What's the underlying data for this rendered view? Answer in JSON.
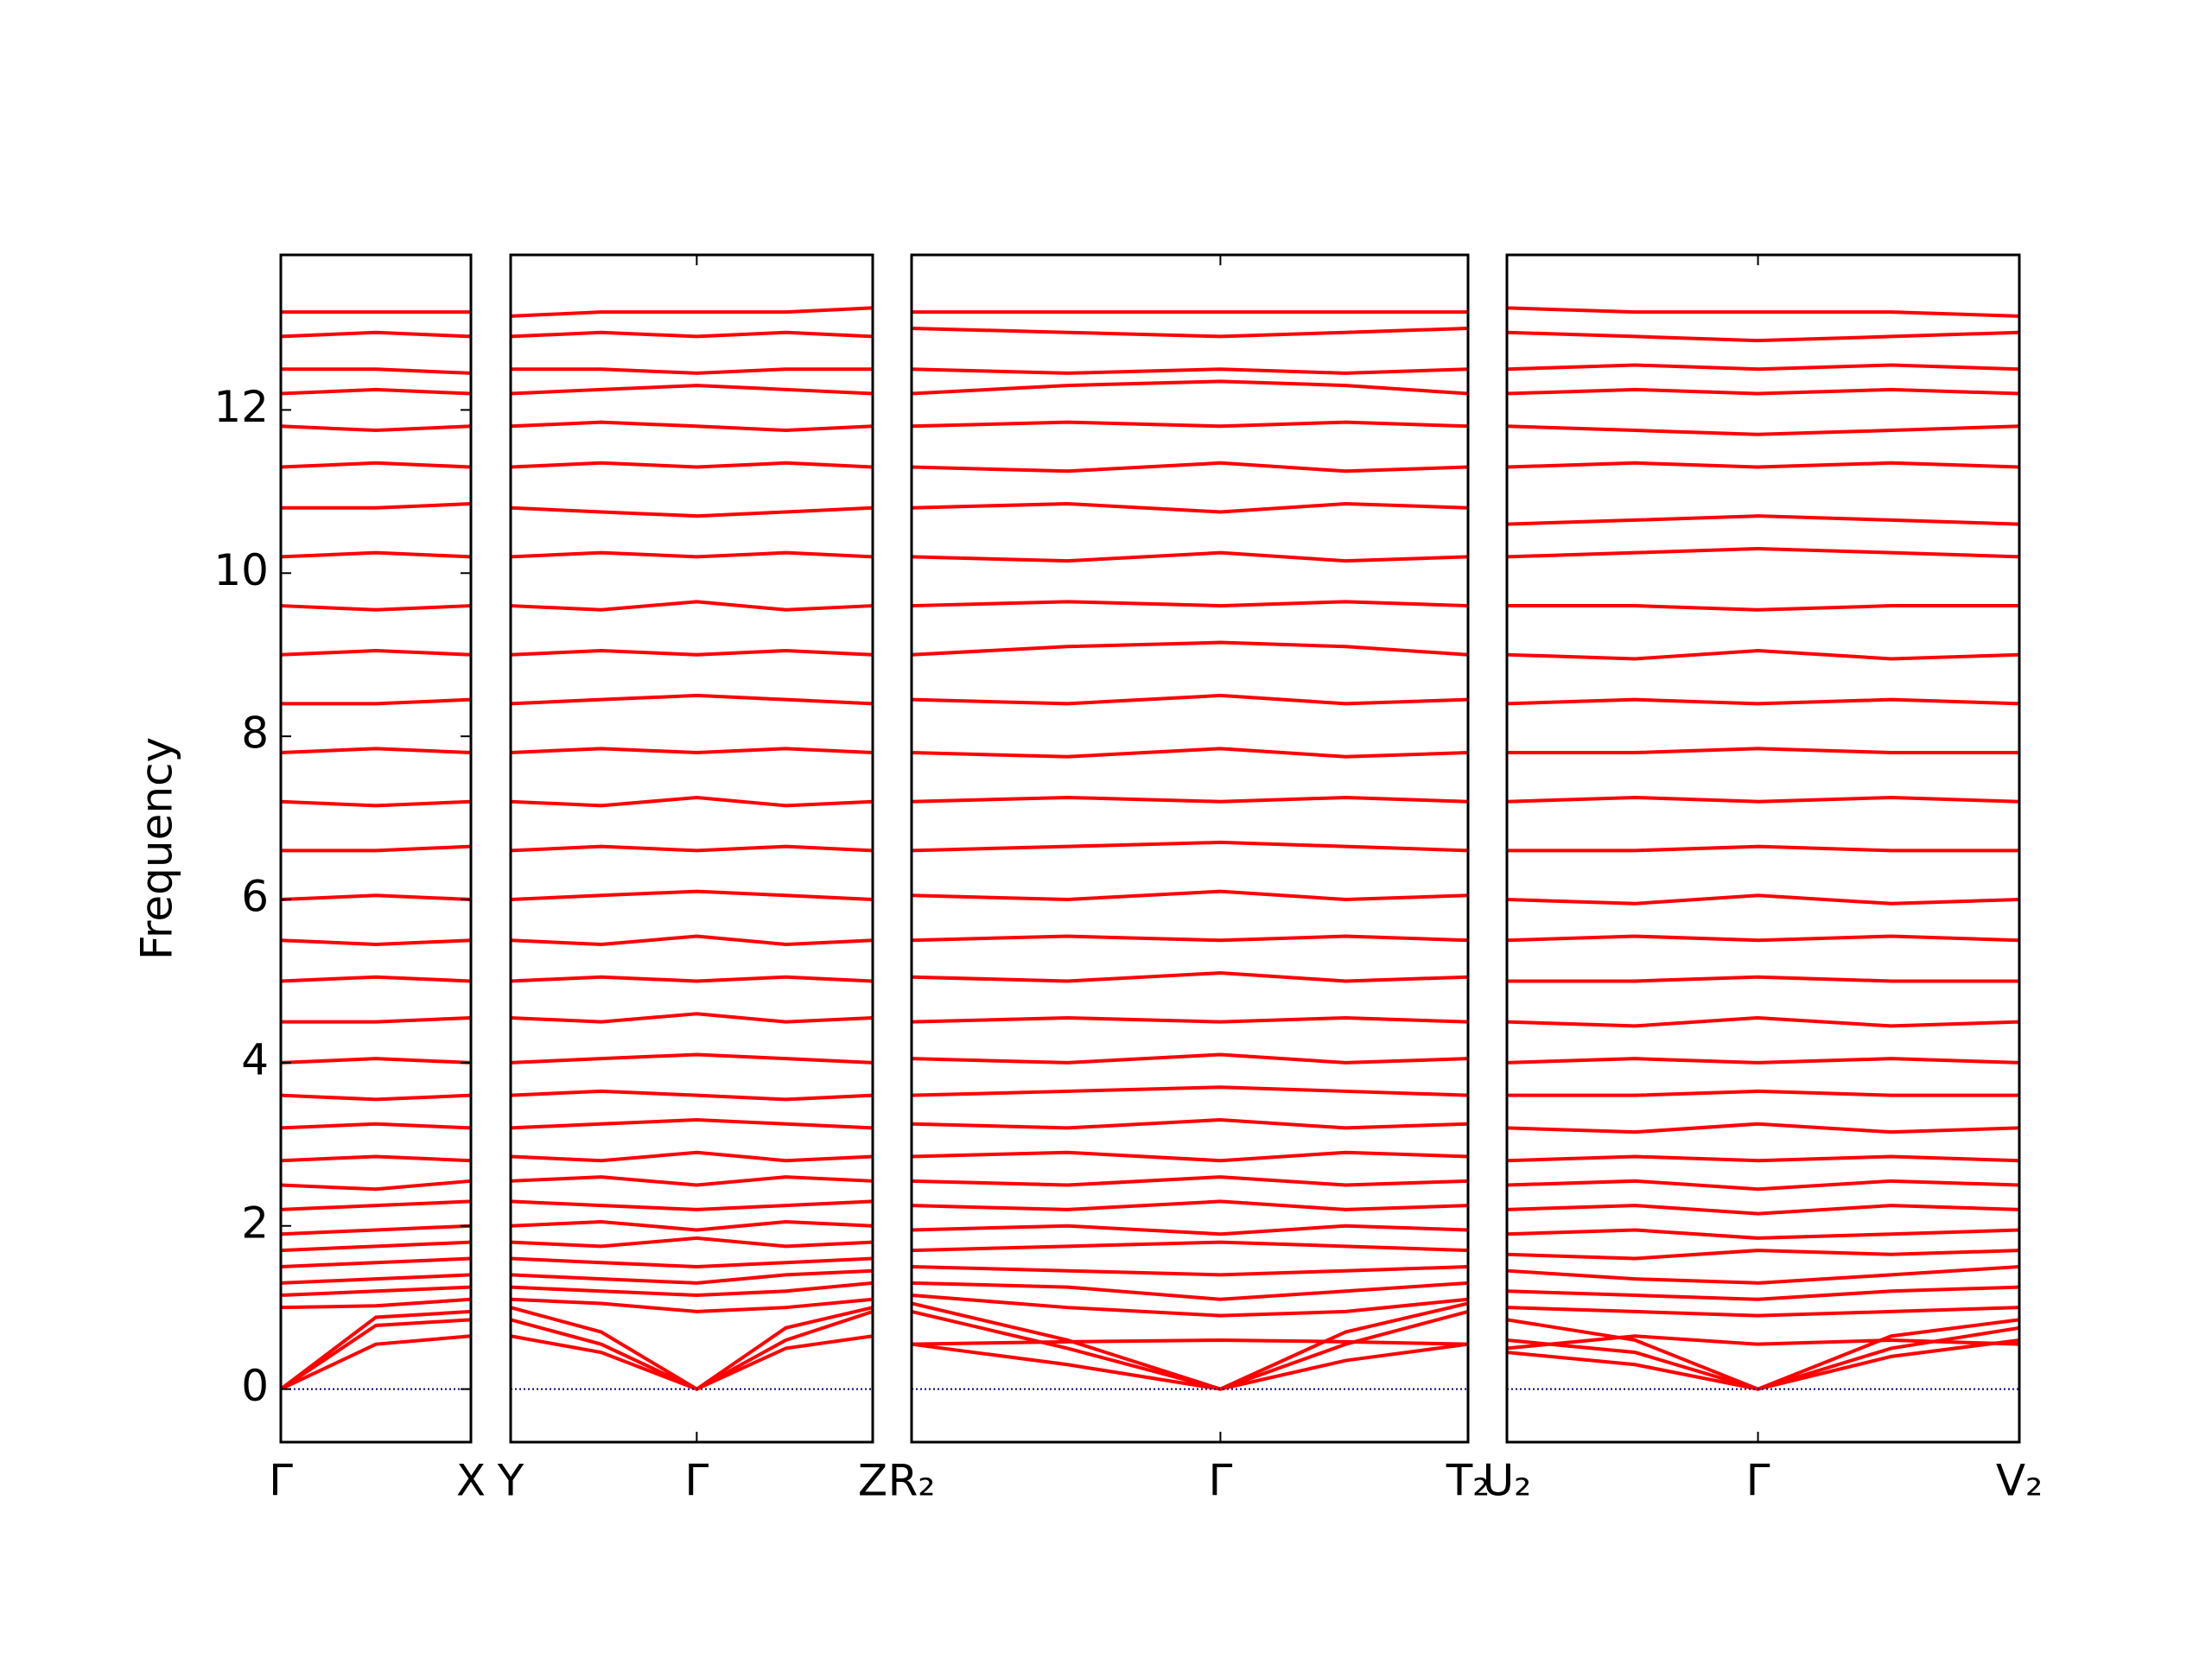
{
  "chart_data": [
    {
      "type": "line",
      "ylabel": "Frequency",
      "color": "#ff0000",
      "hline": 0,
      "hline_color": "#00008b",
      "x": [
        0,
        0.5,
        1
      ],
      "xlim": [
        0,
        1
      ],
      "xticks": [
        {
          "value": 0,
          "label": "Γ"
        },
        {
          "value": 1,
          "label": "X"
        }
      ],
      "ylim": [
        -0.65,
        13.9
      ],
      "yticks": [
        0,
        2,
        4,
        6,
        8,
        10,
        12
      ],
      "series": [
        {
          "values": [
            0,
            0.55,
            0.65
          ]
        },
        {
          "values": [
            0,
            0.78,
            0.85
          ]
        },
        {
          "values": [
            0,
            0.88,
            0.95
          ]
        },
        {
          "values": [
            1.0,
            1.02,
            1.1
          ]
        },
        {
          "values": [
            1.15,
            1.2,
            1.25
          ]
        },
        {
          "values": [
            1.3,
            1.35,
            1.4
          ]
        },
        {
          "values": [
            1.5,
            1.55,
            1.6
          ]
        },
        {
          "values": [
            1.7,
            1.75,
            1.8
          ]
        },
        {
          "values": [
            1.9,
            1.95,
            2.0
          ]
        },
        {
          "values": [
            2.2,
            2.25,
            2.3
          ]
        },
        {
          "values": [
            2.5,
            2.45,
            2.55
          ]
        },
        {
          "values": [
            2.8,
            2.85,
            2.8
          ]
        },
        {
          "values": [
            3.2,
            3.25,
            3.2
          ]
        },
        {
          "values": [
            3.6,
            3.55,
            3.6
          ]
        },
        {
          "values": [
            4.0,
            4.05,
            4.0
          ]
        },
        {
          "values": [
            4.5,
            4.5,
            4.55
          ]
        },
        {
          "values": [
            5.0,
            5.05,
            5.0
          ]
        },
        {
          "values": [
            5.5,
            5.45,
            5.5
          ]
        },
        {
          "values": [
            6.0,
            6.05,
            6.0
          ]
        },
        {
          "values": [
            6.6,
            6.6,
            6.65
          ]
        },
        {
          "values": [
            7.2,
            7.15,
            7.2
          ]
        },
        {
          "values": [
            7.8,
            7.85,
            7.8
          ]
        },
        {
          "values": [
            8.4,
            8.4,
            8.45
          ]
        },
        {
          "values": [
            9.0,
            9.05,
            9.0
          ]
        },
        {
          "values": [
            9.6,
            9.55,
            9.6
          ]
        },
        {
          "values": [
            10.2,
            10.25,
            10.2
          ]
        },
        {
          "values": [
            10.8,
            10.8,
            10.85
          ]
        },
        {
          "values": [
            11.3,
            11.35,
            11.3
          ]
        },
        {
          "values": [
            11.8,
            11.75,
            11.8
          ]
        },
        {
          "values": [
            12.2,
            12.25,
            12.2
          ]
        },
        {
          "values": [
            12.5,
            12.5,
            12.45
          ]
        },
        {
          "values": [
            12.9,
            12.95,
            12.9
          ]
        },
        {
          "values": [
            13.2,
            13.2,
            13.2
          ]
        }
      ]
    },
    {
      "type": "line",
      "color": "#ff0000",
      "hline": 0,
      "hline_color": "#00008b",
      "x": [
        0,
        0.25,
        0.514,
        0.76,
        1
      ],
      "xlim": [
        0,
        1
      ],
      "xticks": [
        {
          "value": 0,
          "label": "Y"
        },
        {
          "value": 0.514,
          "label": "Γ"
        },
        {
          "value": 1,
          "label": "Z"
        }
      ],
      "ylim": [
        -0.65,
        13.9
      ],
      "series": [
        {
          "values": [
            0.65,
            0.45,
            0,
            0.5,
            0.65
          ]
        },
        {
          "values": [
            0.85,
            0.55,
            0,
            0.6,
            0.95
          ]
        },
        {
          "values": [
            1.0,
            0.7,
            0,
            0.75,
            1.0
          ]
        },
        {
          "values": [
            1.1,
            1.05,
            0.95,
            1.0,
            1.1
          ]
        },
        {
          "values": [
            1.25,
            1.2,
            1.15,
            1.2,
            1.3
          ]
        },
        {
          "values": [
            1.4,
            1.35,
            1.3,
            1.4,
            1.45
          ]
        },
        {
          "values": [
            1.6,
            1.55,
            1.5,
            1.55,
            1.6
          ]
        },
        {
          "values": [
            1.8,
            1.75,
            1.85,
            1.75,
            1.8
          ]
        },
        {
          "values": [
            2.0,
            2.05,
            1.95,
            2.05,
            2.0
          ]
        },
        {
          "values": [
            2.3,
            2.25,
            2.2,
            2.25,
            2.3
          ]
        },
        {
          "values": [
            2.55,
            2.6,
            2.5,
            2.6,
            2.55
          ]
        },
        {
          "values": [
            2.85,
            2.8,
            2.9,
            2.8,
            2.85
          ]
        },
        {
          "values": [
            3.2,
            3.25,
            3.3,
            3.25,
            3.2
          ]
        },
        {
          "values": [
            3.6,
            3.65,
            3.6,
            3.55,
            3.6
          ]
        },
        {
          "values": [
            4.0,
            4.05,
            4.1,
            4.05,
            4.0
          ]
        },
        {
          "values": [
            4.55,
            4.5,
            4.6,
            4.5,
            4.55
          ]
        },
        {
          "values": [
            5.0,
            5.05,
            5.0,
            5.05,
            5.0
          ]
        },
        {
          "values": [
            5.5,
            5.45,
            5.55,
            5.45,
            5.5
          ]
        },
        {
          "values": [
            6.0,
            6.05,
            6.1,
            6.05,
            6.0
          ]
        },
        {
          "values": [
            6.6,
            6.65,
            6.6,
            6.65,
            6.6
          ]
        },
        {
          "values": [
            7.2,
            7.15,
            7.25,
            7.15,
            7.2
          ]
        },
        {
          "values": [
            7.8,
            7.85,
            7.8,
            7.85,
            7.8
          ]
        },
        {
          "values": [
            8.4,
            8.45,
            8.5,
            8.45,
            8.4
          ]
        },
        {
          "values": [
            9.0,
            9.05,
            9.0,
            9.05,
            9.0
          ]
        },
        {
          "values": [
            9.6,
            9.55,
            9.65,
            9.55,
            9.6
          ]
        },
        {
          "values": [
            10.2,
            10.25,
            10.2,
            10.25,
            10.2
          ]
        },
        {
          "values": [
            10.8,
            10.75,
            10.7,
            10.75,
            10.8
          ]
        },
        {
          "values": [
            11.3,
            11.35,
            11.3,
            11.35,
            11.3
          ]
        },
        {
          "values": [
            11.8,
            11.85,
            11.8,
            11.75,
            11.8
          ]
        },
        {
          "values": [
            12.2,
            12.25,
            12.3,
            12.25,
            12.2
          ]
        },
        {
          "values": [
            12.5,
            12.5,
            12.45,
            12.5,
            12.5
          ]
        },
        {
          "values": [
            12.9,
            12.95,
            12.9,
            12.95,
            12.9
          ]
        },
        {
          "values": [
            13.15,
            13.2,
            13.2,
            13.2,
            13.25
          ]
        }
      ]
    },
    {
      "type": "line",
      "color": "#ff0000",
      "hline": 0,
      "hline_color": "#00008b",
      "x": [
        0,
        0.28,
        0.555,
        0.78,
        1
      ],
      "xlim": [
        0,
        1
      ],
      "xticks": [
        {
          "value": 0,
          "label": "R₂"
        },
        {
          "value": 0.555,
          "label": "Γ"
        },
        {
          "value": 1,
          "label": "T₂"
        }
      ],
      "ylim": [
        -0.65,
        13.9
      ],
      "series": [
        {
          "values": [
            0.55,
            0.3,
            0,
            0.35,
            0.55
          ]
        },
        {
          "values": [
            0.95,
            0.5,
            0,
            0.55,
            0.95
          ]
        },
        {
          "values": [
            1.05,
            0.6,
            0,
            0.7,
            1.05
          ]
        },
        {
          "values": [
            0.55,
            0.58,
            0.6,
            0.58,
            0.55
          ]
        },
        {
          "values": [
            1.15,
            1.0,
            0.9,
            0.95,
            1.1
          ]
        },
        {
          "values": [
            1.3,
            1.25,
            1.1,
            1.2,
            1.3
          ]
        },
        {
          "values": [
            1.5,
            1.45,
            1.4,
            1.45,
            1.5
          ]
        },
        {
          "values": [
            1.7,
            1.75,
            1.8,
            1.75,
            1.7
          ]
        },
        {
          "values": [
            1.95,
            2.0,
            1.9,
            2.0,
            1.95
          ]
        },
        {
          "values": [
            2.25,
            2.2,
            2.3,
            2.2,
            2.25
          ]
        },
        {
          "values": [
            2.55,
            2.5,
            2.6,
            2.5,
            2.55
          ]
        },
        {
          "values": [
            2.85,
            2.9,
            2.8,
            2.9,
            2.85
          ]
        },
        {
          "values": [
            3.25,
            3.2,
            3.3,
            3.2,
            3.25
          ]
        },
        {
          "values": [
            3.6,
            3.65,
            3.7,
            3.65,
            3.6
          ]
        },
        {
          "values": [
            4.05,
            4.0,
            4.1,
            4.0,
            4.05
          ]
        },
        {
          "values": [
            4.5,
            4.55,
            4.5,
            4.55,
            4.5
          ]
        },
        {
          "values": [
            5.05,
            5.0,
            5.1,
            5.0,
            5.05
          ]
        },
        {
          "values": [
            5.5,
            5.55,
            5.5,
            5.55,
            5.5
          ]
        },
        {
          "values": [
            6.05,
            6.0,
            6.1,
            6.0,
            6.05
          ]
        },
        {
          "values": [
            6.6,
            6.65,
            6.7,
            6.65,
            6.6
          ]
        },
        {
          "values": [
            7.2,
            7.25,
            7.2,
            7.25,
            7.2
          ]
        },
        {
          "values": [
            7.8,
            7.75,
            7.85,
            7.75,
            7.8
          ]
        },
        {
          "values": [
            8.45,
            8.4,
            8.5,
            8.4,
            8.45
          ]
        },
        {
          "values": [
            9.0,
            9.1,
            9.15,
            9.1,
            9.0
          ]
        },
        {
          "values": [
            9.6,
            9.65,
            9.6,
            9.65,
            9.6
          ]
        },
        {
          "values": [
            10.2,
            10.15,
            10.25,
            10.15,
            10.2
          ]
        },
        {
          "values": [
            10.8,
            10.85,
            10.75,
            10.85,
            10.8
          ]
        },
        {
          "values": [
            11.3,
            11.25,
            11.35,
            11.25,
            11.3
          ]
        },
        {
          "values": [
            11.8,
            11.85,
            11.8,
            11.85,
            11.8
          ]
        },
        {
          "values": [
            12.2,
            12.3,
            12.35,
            12.3,
            12.2
          ]
        },
        {
          "values": [
            12.5,
            12.45,
            12.5,
            12.45,
            12.5
          ]
        },
        {
          "values": [
            13.0,
            12.95,
            12.9,
            12.95,
            13.0
          ]
        },
        {
          "values": [
            13.2,
            13.2,
            13.2,
            13.2,
            13.2
          ]
        }
      ]
    },
    {
      "type": "line",
      "color": "#ff0000",
      "hline": 0,
      "hline_color": "#00008b",
      "x": [
        0,
        0.25,
        0.49,
        0.75,
        1
      ],
      "xlim": [
        0,
        1
      ],
      "xticks": [
        {
          "value": 0,
          "label": "U₂"
        },
        {
          "value": 0.49,
          "label": "Γ"
        },
        {
          "value": 1,
          "label": "V₂"
        }
      ],
      "ylim": [
        -0.65,
        13.9
      ],
      "series": [
        {
          "values": [
            0.45,
            0.3,
            0,
            0.4,
            0.6
          ]
        },
        {
          "values": [
            0.6,
            0.45,
            0,
            0.5,
            0.75
          ]
        },
        {
          "values": [
            0.85,
            0.6,
            0,
            0.65,
            0.85
          ]
        },
        {
          "values": [
            0.5,
            0.65,
            0.55,
            0.6,
            0.55
          ]
        },
        {
          "values": [
            1.0,
            0.95,
            0.9,
            0.95,
            1.0
          ]
        },
        {
          "values": [
            1.2,
            1.15,
            1.1,
            1.2,
            1.25
          ]
        },
        {
          "values": [
            1.45,
            1.35,
            1.3,
            1.4,
            1.5
          ]
        },
        {
          "values": [
            1.65,
            1.6,
            1.7,
            1.65,
            1.7
          ]
        },
        {
          "values": [
            1.9,
            1.95,
            1.85,
            1.9,
            1.95
          ]
        },
        {
          "values": [
            2.2,
            2.25,
            2.15,
            2.25,
            2.2
          ]
        },
        {
          "values": [
            2.5,
            2.55,
            2.45,
            2.55,
            2.5
          ]
        },
        {
          "values": [
            2.8,
            2.85,
            2.8,
            2.85,
            2.8
          ]
        },
        {
          "values": [
            3.2,
            3.15,
            3.25,
            3.15,
            3.2
          ]
        },
        {
          "values": [
            3.6,
            3.6,
            3.65,
            3.6,
            3.6
          ]
        },
        {
          "values": [
            4.0,
            4.05,
            4.0,
            4.05,
            4.0
          ]
        },
        {
          "values": [
            4.5,
            4.45,
            4.55,
            4.45,
            4.5
          ]
        },
        {
          "values": [
            5.0,
            5.0,
            5.05,
            5.0,
            5.0
          ]
        },
        {
          "values": [
            5.5,
            5.55,
            5.5,
            5.55,
            5.5
          ]
        },
        {
          "values": [
            6.0,
            5.95,
            6.05,
            5.95,
            6.0
          ]
        },
        {
          "values": [
            6.6,
            6.6,
            6.65,
            6.6,
            6.6
          ]
        },
        {
          "values": [
            7.2,
            7.25,
            7.2,
            7.25,
            7.2
          ]
        },
        {
          "values": [
            7.8,
            7.8,
            7.85,
            7.8,
            7.8
          ]
        },
        {
          "values": [
            8.4,
            8.45,
            8.4,
            8.45,
            8.4
          ]
        },
        {
          "values": [
            9.0,
            8.95,
            9.05,
            8.95,
            9.0
          ]
        },
        {
          "values": [
            9.6,
            9.6,
            9.55,
            9.6,
            9.6
          ]
        },
        {
          "values": [
            10.2,
            10.25,
            10.3,
            10.25,
            10.2
          ]
        },
        {
          "values": [
            10.6,
            10.65,
            10.7,
            10.65,
            10.6
          ]
        },
        {
          "values": [
            11.3,
            11.35,
            11.3,
            11.35,
            11.3
          ]
        },
        {
          "values": [
            11.8,
            11.75,
            11.7,
            11.75,
            11.8
          ]
        },
        {
          "values": [
            12.2,
            12.25,
            12.2,
            12.25,
            12.2
          ]
        },
        {
          "values": [
            12.5,
            12.55,
            12.5,
            12.55,
            12.5
          ]
        },
        {
          "values": [
            12.95,
            12.9,
            12.85,
            12.9,
            12.95
          ]
        },
        {
          "values": [
            13.25,
            13.2,
            13.2,
            13.2,
            13.15
          ]
        }
      ]
    }
  ]
}
